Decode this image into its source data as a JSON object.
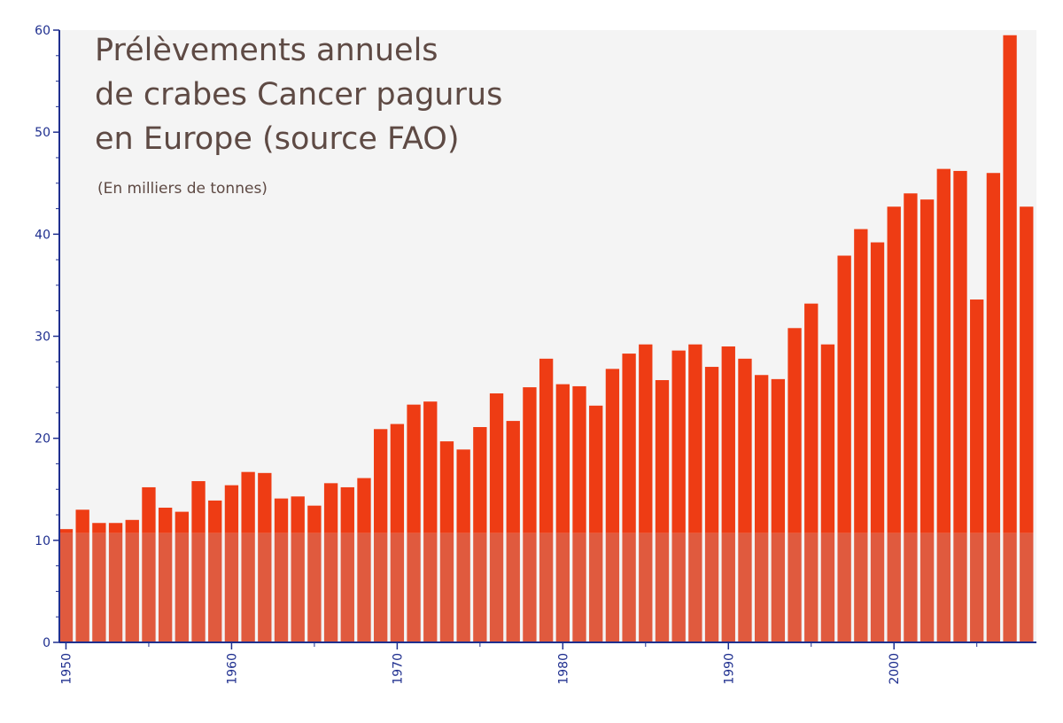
{
  "chart_data": {
    "type": "bar",
    "title_lines": [
      "Prélèvements annuels",
      "de crabes Cancer pagurus",
      "en Europe (source  FAO)"
    ],
    "subtitle": "(En milliers de tonnes)",
    "xlabel": "",
    "ylabel": "",
    "ylim": [
      0,
      60
    ],
    "yticks": [
      0,
      10,
      20,
      30,
      40,
      50,
      60
    ],
    "xlim": [
      1949.6,
      2008.6
    ],
    "xticks": [
      1950,
      1960,
      1970,
      1980,
      1990,
      2000
    ],
    "grid": false,
    "categories": [
      1950,
      1951,
      1952,
      1953,
      1954,
      1955,
      1956,
      1957,
      1958,
      1959,
      1960,
      1961,
      1962,
      1963,
      1964,
      1965,
      1966,
      1967,
      1968,
      1969,
      1970,
      1971,
      1972,
      1973,
      1974,
      1975,
      1976,
      1977,
      1978,
      1979,
      1980,
      1981,
      1982,
      1983,
      1984,
      1985,
      1986,
      1987,
      1988,
      1989,
      1990,
      1991,
      1992,
      1993,
      1994,
      1995,
      1996,
      1997,
      1998,
      1999,
      2000,
      2001,
      2002,
      2003,
      2004,
      2005,
      2006,
      2007,
      2008
    ],
    "values": [
      11.1,
      13.0,
      11.7,
      11.7,
      12.0,
      15.2,
      13.2,
      12.8,
      15.8,
      13.9,
      15.4,
      16.7,
      16.6,
      14.1,
      14.3,
      13.4,
      15.6,
      15.2,
      16.1,
      20.9,
      21.4,
      23.3,
      23.6,
      19.7,
      18.9,
      21.1,
      24.4,
      21.7,
      25.0,
      27.8,
      25.3,
      25.1,
      23.2,
      26.8,
      28.3,
      29.2,
      25.7,
      28.6,
      29.2,
      27.0,
      29.0,
      27.8,
      26.2,
      25.8,
      30.8,
      33.2,
      29.2,
      37.9,
      40.5,
      39.2,
      42.7,
      44.0,
      43.4,
      46.4,
      46.2,
      33.6,
      46.0,
      59.5,
      42.7
    ],
    "colors": {
      "bar": "#ee3c14",
      "bar_lower": "#e05a3e",
      "plot_bg": "#f4f4f4",
      "axis": "#1f2f8f",
      "title": "#5e4a44"
    }
  }
}
